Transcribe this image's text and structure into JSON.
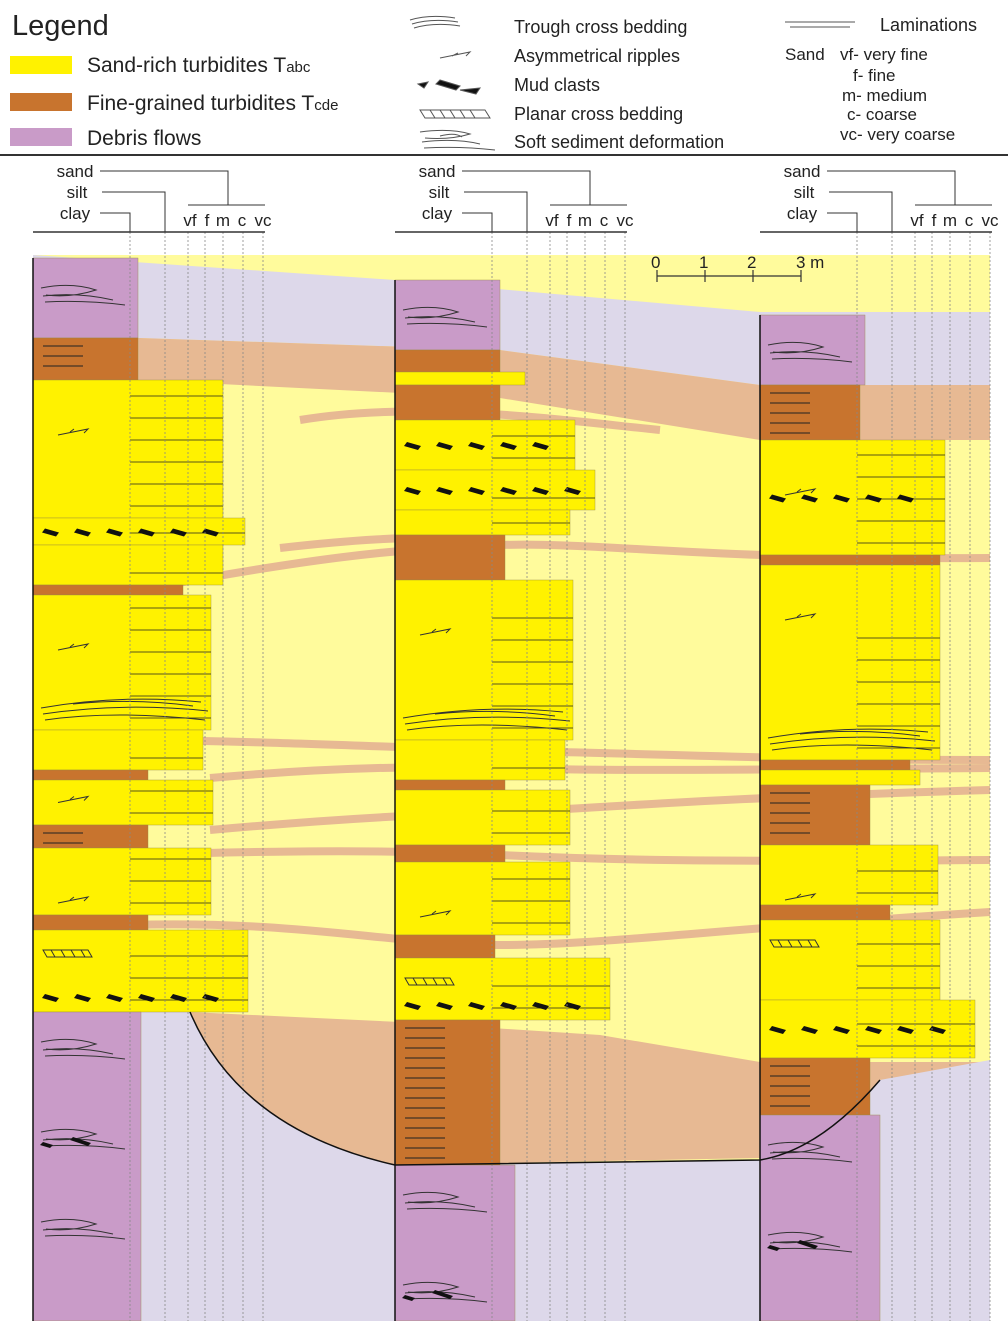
{
  "legend": {
    "title": "Legend",
    "facies": [
      {
        "label": "Sand-rich turbidites T",
        "subscript": "abc"
      },
      {
        "label": "Fine-grained turbidites T",
        "subscript": "cde"
      },
      {
        "label": "Debris flows"
      }
    ],
    "symbols": [
      "Trough cross bedding",
      "Asymmetrical ripples",
      "Mud clasts",
      "Planar cross bedding",
      "Soft sediment deformation"
    ],
    "laminations": "Laminations",
    "grain_size": {
      "title": "Sand",
      "classes": [
        "vf- very fine",
        "f- fine",
        "m- medium",
        "c- coarse",
        "vc- very coarse"
      ]
    }
  },
  "columns": [
    {
      "grain_labels": [
        "sand",
        "silt",
        "clay"
      ],
      "sand_classes": [
        "vf",
        "f",
        "m",
        "c",
        "vc"
      ]
    },
    {
      "grain_labels": [
        "sand",
        "silt",
        "clay"
      ],
      "sand_classes": [
        "vf",
        "f",
        "m",
        "c",
        "vc"
      ]
    },
    {
      "grain_labels": [
        "sand",
        "silt",
        "clay"
      ],
      "sand_classes": [
        "vf",
        "f",
        "m",
        "c",
        "vc"
      ]
    }
  ],
  "scale": {
    "labels": [
      "0",
      "1",
      "2",
      "3 m"
    ]
  }
}
